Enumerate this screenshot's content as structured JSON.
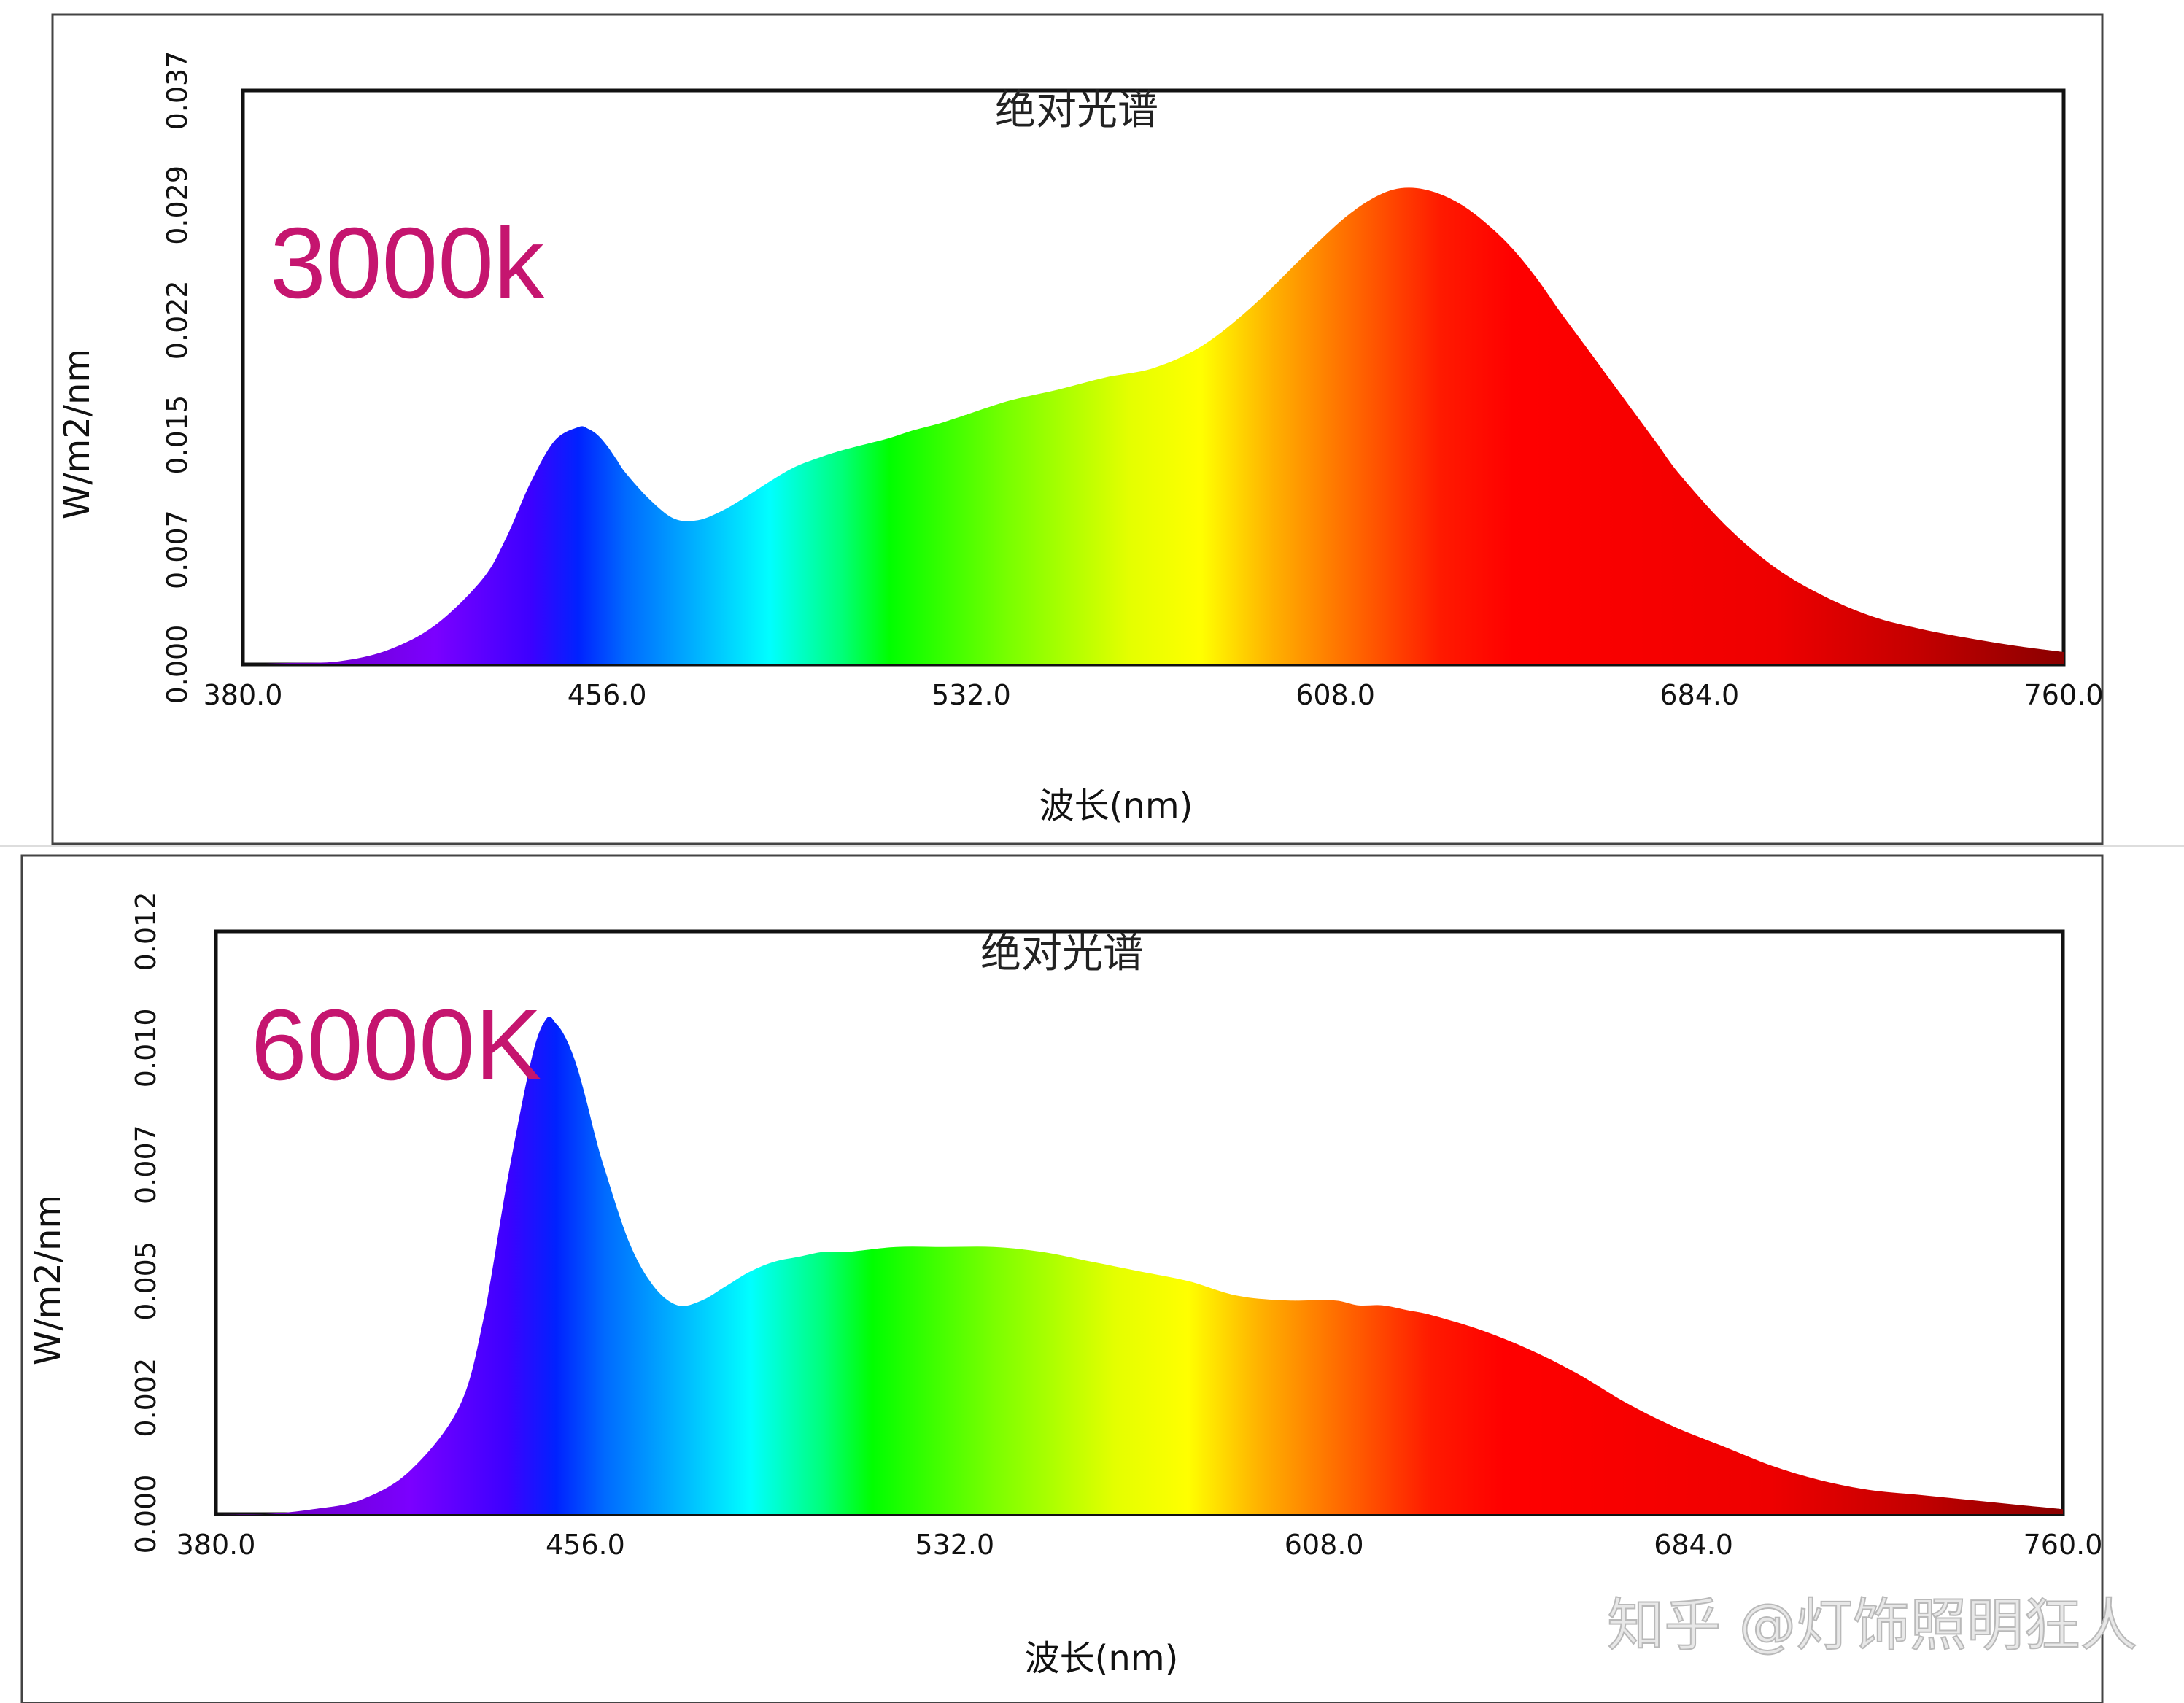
{
  "chart_data": [
    {
      "type": "area",
      "title": "绝对光谱",
      "label": "3000k",
      "xlabel": "波长(nm)",
      "ylabel": "W/m2/nm",
      "xlim": [
        380.0,
        760.0
      ],
      "ylim": [
        0.0,
        0.037
      ],
      "x_ticks": [
        "380.0",
        "456.0",
        "532.0",
        "608.0",
        "684.0",
        "760.0"
      ],
      "y_ticks": [
        "0.000",
        "0.007",
        "0.015",
        "0.022",
        "0.029",
        "0.037"
      ],
      "fill": "visible-spectrum-gradient",
      "grid": false,
      "x": [
        380,
        390,
        400,
        410,
        420,
        430,
        435,
        440,
        445,
        450,
        452,
        454,
        456,
        458,
        460,
        465,
        470,
        475,
        480,
        485,
        490,
        495,
        500,
        505,
        510,
        515,
        520,
        525,
        530,
        540,
        550,
        560,
        570,
        580,
        590,
        600,
        605,
        610,
        615,
        620,
        625,
        630,
        635,
        640,
        645,
        650,
        655,
        660,
        665,
        670,
        675,
        680,
        690,
        700,
        710,
        720,
        730,
        740,
        750,
        760
      ],
      "values": [
        0.0,
        0.0001,
        0.0002,
        0.0009,
        0.0025,
        0.0055,
        0.0082,
        0.0117,
        0.0144,
        0.0153,
        0.0152,
        0.0148,
        0.0141,
        0.0132,
        0.0123,
        0.0106,
        0.0094,
        0.0093,
        0.0099,
        0.0108,
        0.0118,
        0.0127,
        0.0133,
        0.0138,
        0.0142,
        0.0146,
        0.0151,
        0.0155,
        0.016,
        0.017,
        0.0177,
        0.0185,
        0.0191,
        0.0205,
        0.0229,
        0.0259,
        0.0274,
        0.0288,
        0.0299,
        0.0306,
        0.0307,
        0.0303,
        0.0295,
        0.0283,
        0.0268,
        0.0249,
        0.0227,
        0.0206,
        0.0185,
        0.0164,
        0.0143,
        0.0122,
        0.0088,
        0.0062,
        0.0044,
        0.0031,
        0.0023,
        0.0017,
        0.0012,
        0.0008
      ]
    },
    {
      "type": "area",
      "title": "绝对光谱",
      "label": "6000K",
      "xlabel": "波长(nm)",
      "ylabel": "W/m2/nm",
      "xlim": [
        380.0,
        760.0
      ],
      "ylim": [
        0.0,
        0.012
      ],
      "x_ticks": [
        "380.0",
        "456.0",
        "532.0",
        "608.0",
        "684.0",
        "760.0"
      ],
      "y_ticks": [
        "0.000",
        "0.002",
        "0.005",
        "0.007",
        "0.010",
        "0.012"
      ],
      "fill": "visible-spectrum-gradient",
      "grid": false,
      "x": [
        380,
        390,
        400,
        410,
        420,
        430,
        435,
        440,
        445,
        448,
        450,
        452,
        454,
        456,
        458,
        460,
        465,
        470,
        475,
        480,
        485,
        490,
        495,
        500,
        505,
        510,
        520,
        530,
        540,
        550,
        560,
        570,
        580,
        590,
        600,
        610,
        615,
        620,
        625,
        630,
        640,
        650,
        660,
        670,
        680,
        690,
        700,
        710,
        720,
        730,
        740,
        750,
        760
      ],
      "values": [
        0.0,
        0.0,
        0.0001,
        0.0003,
        0.0009,
        0.0022,
        0.004,
        0.0069,
        0.0094,
        0.0102,
        0.0101,
        0.0098,
        0.0093,
        0.0086,
        0.0078,
        0.0071,
        0.0056,
        0.0047,
        0.0043,
        0.0044,
        0.0047,
        0.005,
        0.0052,
        0.0053,
        0.0054,
        0.0054,
        0.0055,
        0.0055,
        0.0055,
        0.0054,
        0.0052,
        0.005,
        0.0048,
        0.0045,
        0.0044,
        0.0044,
        0.0043,
        0.0043,
        0.0042,
        0.0041,
        0.0038,
        0.0034,
        0.0029,
        0.0023,
        0.0018,
        0.0014,
        0.001,
        0.0007,
        0.0005,
        0.0004,
        0.0003,
        0.0002,
        0.0001
      ]
    }
  ],
  "watermark": "知乎 @灯饰照明狂人",
  "colors": {
    "label": "#C5156F",
    "axis": "#000000",
    "watermark_fill": "#e8e8e8",
    "watermark_stroke": "#b9b9b9"
  }
}
